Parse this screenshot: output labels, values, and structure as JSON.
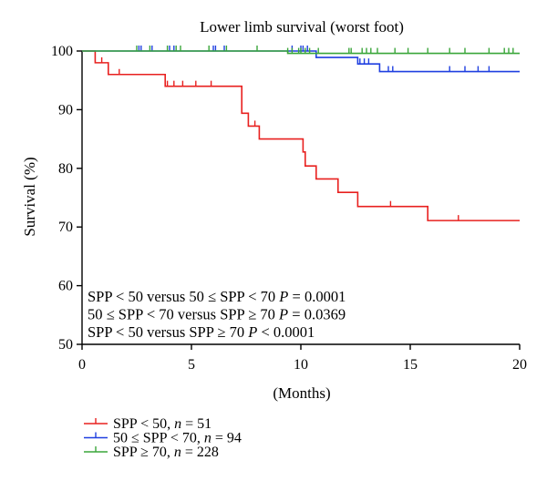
{
  "chart_data": {
    "type": "line",
    "title": "Lower limb survival (worst foot)",
    "xlabel": "(Months)",
    "ylabel": "Survival (%)",
    "xlim": [
      0,
      20
    ],
    "ylim": [
      50,
      100
    ],
    "x_ticks": [
      0,
      5,
      10,
      15,
      20
    ],
    "y_ticks": [
      50,
      60,
      70,
      80,
      90,
      100
    ],
    "grid": false,
    "legend_position": "bottom-left",
    "annotations": [
      {
        "text": "SPP < 50 versus 50 ≤ SPP < 70 ",
        "pvar": "P",
        "rest": " = 0.0001"
      },
      {
        "text": "50 ≤ SPP < 70 versus SPP ≥ 70 ",
        "pvar": "P",
        "rest": " = 0.0369"
      },
      {
        "text": "SPP < 50 versus SPP ≥ 70 ",
        "pvar": "P",
        "rest": " < 0.0001"
      }
    ],
    "series": [
      {
        "name": "SPP < 50",
        "n": "51",
        "color": "#e8201f",
        "steps": [
          [
            0,
            100
          ],
          [
            0.6,
            98
          ],
          [
            1.2,
            96
          ],
          [
            3.8,
            94
          ],
          [
            7.3,
            89.4
          ],
          [
            7.6,
            87.2
          ],
          [
            8.1,
            85
          ],
          [
            10.1,
            82.8
          ],
          [
            10.2,
            80.4
          ],
          [
            10.7,
            78.2
          ],
          [
            11.7,
            75.9
          ],
          [
            12.6,
            73.5
          ],
          [
            15.8,
            71.1
          ],
          [
            20,
            71.1
          ]
        ],
        "censor": [
          0.9,
          1.7,
          3.9,
          4.2,
          4.6,
          5.2,
          5.9,
          7.9,
          14.1,
          17.2
        ]
      },
      {
        "name": "50 ≤ SPP < 70",
        "n": "94",
        "color": "#1f3fe0",
        "steps": [
          [
            0,
            100
          ],
          [
            10.7,
            98.9
          ],
          [
            12.6,
            97.8
          ],
          [
            13.6,
            96.5
          ],
          [
            20,
            96.5
          ]
        ],
        "censor": [
          2.6,
          2.7,
          3.2,
          4.0,
          4.2,
          6.0,
          6.1,
          6.5,
          9.6,
          10.0,
          10.1,
          10.3,
          12.7,
          12.9,
          13.1,
          14.0,
          14.2,
          16.8,
          17.5,
          18.1,
          18.6
        ]
      },
      {
        "name": "SPP ≥ 70",
        "n": "228",
        "color": "#3aa63a",
        "steps": [
          [
            0,
            100
          ],
          [
            9.4,
            99.6
          ],
          [
            20,
            99.6
          ]
        ],
        "censor": [
          2.5,
          3.1,
          3.9,
          4.3,
          4.5,
          5.8,
          6.6,
          8.0,
          9.4,
          9.6,
          9.9,
          10.0,
          10.2,
          10.4,
          10.8,
          12.2,
          12.3,
          12.8,
          13.0,
          13.2,
          13.5,
          14.3,
          14.9,
          15.8,
          16.8,
          17.5,
          18.6,
          19.3,
          19.5,
          19.7
        ]
      }
    ]
  }
}
